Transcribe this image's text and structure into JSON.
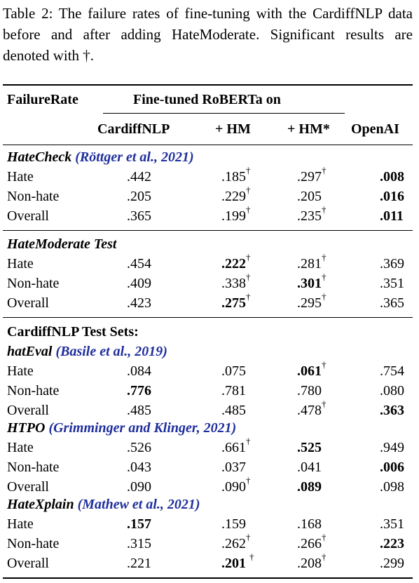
{
  "caption": "Table 2: The failure rates of fine-tuning with the CardiffNLP data before and after adding HateModerate. Significant results are denoted with †.",
  "header": {
    "row_label": "FailureRate",
    "group": "Fine-tuned RoBERTa on",
    "columns": [
      "CardiffNLP",
      "+ HM",
      "+ HM*",
      "OpenAI"
    ]
  },
  "dagger": "†",
  "sections": {
    "hatecheck": {
      "name": "HateCheck",
      "cite": "(Röttger et al., 2021)"
    },
    "hatemoderate": {
      "name": "HateModerate Test"
    },
    "cardiff": {
      "name": "CardiffNLP Test Sets:"
    },
    "hateval": {
      "name": "hatEval",
      "cite": "(Basile et al., 2019)"
    },
    "htpo": {
      "name": "HTPO",
      "cite": "(Grimminger and Klinger, 2021)"
    },
    "hatexplain": {
      "name": "HateXplain",
      "cite": "(Mathew et al., 2021)"
    }
  },
  "labels": {
    "hate": "Hate",
    "nonhate": "Non-hate",
    "overall": "Overall"
  },
  "rows": {
    "hc_hate": [
      ".442",
      ".185",
      ".297",
      ".008"
    ],
    "hc_nonhate": [
      ".205",
      ".229",
      ".205",
      ".016"
    ],
    "hc_overall": [
      ".365",
      ".199",
      ".235",
      ".011"
    ],
    "hm_hate": [
      ".454",
      ".222",
      ".281",
      ".369"
    ],
    "hm_nonhate": [
      ".409",
      ".338",
      ".301",
      ".351"
    ],
    "hm_overall": [
      ".423",
      ".275",
      ".295",
      ".365"
    ],
    "he_hate": [
      ".084",
      ".075",
      ".061",
      ".754"
    ],
    "he_nonhate": [
      ".776",
      ".781",
      ".780",
      ".080"
    ],
    "he_overall": [
      ".485",
      ".485",
      ".478",
      ".363"
    ],
    "ht_hate": [
      ".526",
      ".661",
      ".525",
      ".949"
    ],
    "ht_nonhate": [
      ".043",
      ".037",
      ".041",
      ".006"
    ],
    "ht_overall": [
      ".090",
      ".090",
      ".089",
      ".098"
    ],
    "hx_hate": [
      ".157",
      ".159",
      ".168",
      ".351"
    ],
    "hx_nonhate": [
      ".315",
      ".262",
      ".266",
      ".223"
    ],
    "hx_overall": [
      ".221",
      ".201",
      ".208",
      ".299"
    ]
  }
}
